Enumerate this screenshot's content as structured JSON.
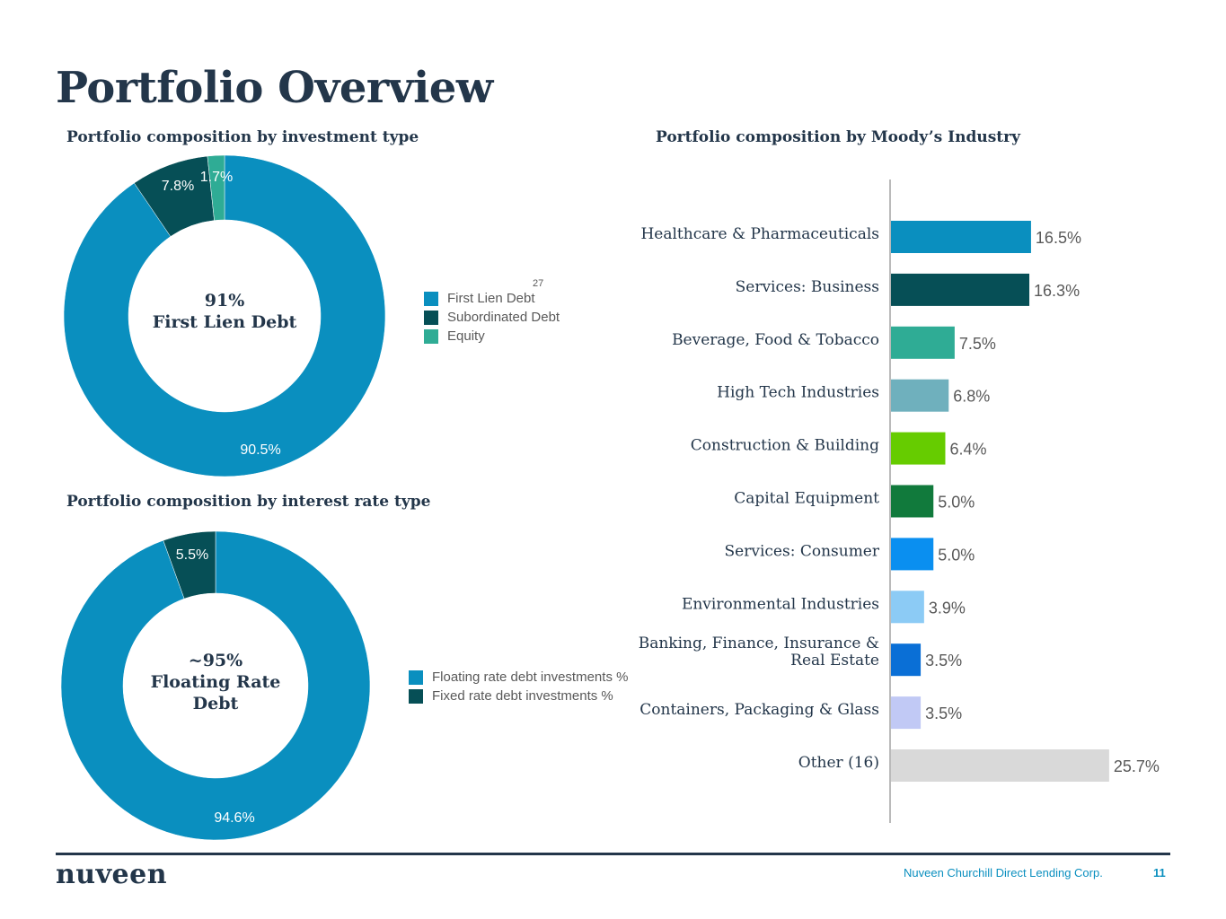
{
  "page": {
    "title": "Portfolio Overview",
    "logo": "nuveen",
    "company": "Nuveen Churchill Direct Lending Corp.",
    "page_number": "11",
    "footnote_marker": "27"
  },
  "colors": {
    "navy": "#23364a",
    "first_lien": "#0a8fbf",
    "subordinated": "#064f56",
    "equity": "#2fac95",
    "footer_blue": "#0a8fbf"
  },
  "chart_data": [
    {
      "type": "pie",
      "variant": "donut",
      "title": "Portfolio composition by investment type",
      "center_label": [
        "91%",
        "First Lien Debt"
      ],
      "series": [
        {
          "name": "First Lien Debt",
          "value": 90.5,
          "label": "90.5%",
          "color": "#0a8fbf"
        },
        {
          "name": "Subordinated Debt",
          "value": 7.8,
          "label": "7.8%",
          "color": "#064f56"
        },
        {
          "name": "Equity",
          "value": 1.7,
          "label": "1.7%",
          "color": "#2fac95"
        }
      ],
      "legend_position": "right"
    },
    {
      "type": "pie",
      "variant": "donut",
      "title": "Portfolio composition by interest rate type",
      "center_label": [
        "~95%",
        "Floating Rate",
        "Debt"
      ],
      "series": [
        {
          "name": "Floating rate debt investments %",
          "value": 94.6,
          "label": "94.6%",
          "color": "#0a8fbf"
        },
        {
          "name": "Fixed rate debt investments %",
          "value": 5.5,
          "label": "5.5%",
          "color": "#064f56"
        }
      ],
      "legend_position": "right"
    },
    {
      "type": "bar",
      "orientation": "horizontal",
      "title": "Portfolio composition by Moody’s Industry",
      "categories": [
        [
          "Healthcare & Pharmaceuticals"
        ],
        [
          "Services: Business"
        ],
        [
          "Beverage, Food & Tobacco"
        ],
        [
          "High Tech Industries"
        ],
        [
          "Construction & Building"
        ],
        [
          "Capital Equipment"
        ],
        [
          "Services: Consumer"
        ],
        [
          "Environmental Industries"
        ],
        [
          "Banking, Finance, Insurance &",
          "Real Estate"
        ],
        [
          "Containers, Packaging & Glass"
        ],
        [
          "Other (16)"
        ]
      ],
      "values": [
        16.5,
        16.3,
        7.5,
        6.8,
        6.4,
        5.0,
        5.0,
        3.9,
        3.5,
        3.5,
        25.7
      ],
      "value_labels": [
        "16.5%",
        "16.3%",
        "7.5%",
        "6.8%",
        "6.4%",
        "5.0%",
        "5.0%",
        "3.9%",
        "3.5%",
        "3.5%",
        "25.7%"
      ],
      "colors": [
        "#0a8fbf",
        "#064f56",
        "#2fac95",
        "#6fb0bd",
        "#66cc00",
        "#117a3c",
        "#0a8ff0",
        "#8ccbf5",
        "#0a6fd6",
        "#c1c9f5",
        "#d9d9d9"
      ],
      "xlim": [
        0,
        27
      ]
    }
  ]
}
